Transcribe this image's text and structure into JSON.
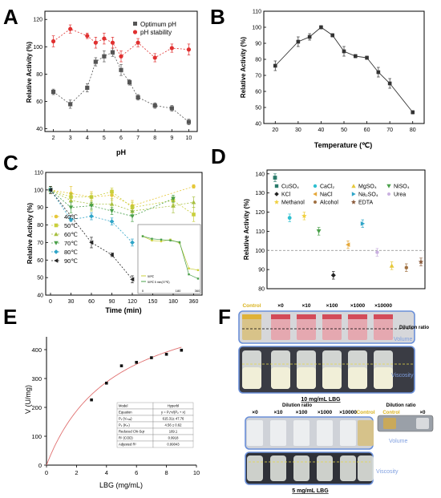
{
  "panels": {
    "A": {
      "letter": "A",
      "chart_type": "line",
      "x_label": "pH",
      "y_label": "Relative Activity (%)",
      "x_ticks": [
        2,
        3,
        4,
        5,
        6,
        7,
        8,
        9,
        10
      ],
      "y_ticks": [
        40,
        60,
        80,
        100,
        120
      ],
      "legend": [
        "Optimum pH",
        "pH stability"
      ],
      "legend_position": "top-right"
    },
    "B": {
      "letter": "B",
      "chart_type": "line",
      "x_label": "Temperature (℃)",
      "y_label": "Relative Activity (%)",
      "x_ticks": [
        20,
        30,
        40,
        50,
        60,
        70,
        80
      ],
      "y_ticks": [
        40,
        50,
        60,
        70,
        80,
        90,
        100,
        110
      ]
    },
    "C": {
      "letter": "C",
      "chart_type": "line",
      "x_label": "Time (min)",
      "y_label": "Relative Activity (%)",
      "x_tick_labels": [
        "0",
        "30",
        "60",
        "90",
        "120",
        "150",
        "180",
        "360"
      ],
      "y_ticks": [
        40,
        50,
        60,
        70,
        80,
        90,
        100,
        110
      ],
      "legend": [
        "40℃",
        "50℃",
        "60℃",
        "70℃",
        "80℃",
        "90℃"
      ],
      "legend_position": "left",
      "inset_legend": [
        "50℃",
        "50℃ 5 min(37℃)"
      ],
      "inset_x_tick_labels": [
        "0",
        "180",
        "360"
      ]
    },
    "D": {
      "letter": "D",
      "chart_type": "scatter",
      "y_label": "Relative Activity (%)",
      "y_ticks": [
        80,
        90,
        100,
        110,
        120,
        130,
        140
      ],
      "legend": [
        "CuSO₄",
        "CaCl₂",
        "MgSO₄",
        "NiSO₄",
        "KCl",
        "NaCl",
        "Na₂SO₄",
        "Urea",
        "Methanol",
        "Alcohol",
        "EDTA"
      ]
    },
    "E": {
      "letter": "E",
      "chart_type": "scatter",
      "x_label": "LBG (mg/mL)",
      "y_label": "V (U/mg)",
      "x_ticks": [
        0,
        2,
        4,
        6,
        8,
        10
      ],
      "y_ticks": [
        0,
        100,
        200,
        300,
        400
      ],
      "fit_table": [
        [
          "Model",
          "Hyperbl"
        ],
        [
          "Equation",
          "y = P₁*x/(P₂ + x)"
        ],
        [
          "P₁ (Vₘₐₓ)",
          "615.31± 47.76"
        ],
        [
          "P₂ (Kₘ)",
          "4.56 ± 0.62"
        ],
        [
          "Reduced Chi-Sqr",
          "169.1"
        ],
        [
          "R² (COD)",
          "0.9918"
        ],
        [
          "Adjusted R²",
          "0.99043"
        ]
      ]
    },
    "F": {
      "letter": "F",
      "top_labels": [
        "Control",
        "×0",
        "×10",
        "×100",
        "×1000",
        "×10000"
      ],
      "dilution_label": "Dilution ratio",
      "volume_label": "Volume",
      "viscosity_label": "Viscosity",
      "top_caption": "10 mg/mL  LBG",
      "bottom_labels": [
        "×0",
        "×10",
        "×100",
        "×1000",
        "×10000",
        "Control"
      ],
      "bottom_dilution_label": "Dilution ratio",
      "inset_dilution_label": "Dilution ratio",
      "inset_labels": [
        "Control",
        "×0"
      ],
      "bottom_volume_label": "Volume",
      "bottom_viscosity_label": "Viscosity",
      "bottom_caption": "5 mg/mL  LBG"
    }
  },
  "colors": {
    "black": "#2a2a2a",
    "red": "#e03030",
    "grey": "#555555",
    "c40": "#e6c83a",
    "c50": "#c9cf3b",
    "c60": "#a8c040",
    "c70": "#4aa04a",
    "c80": "#2fa5c8",
    "c90": "#222222",
    "fit": "#e07070",
    "photoBorder": "#6a8fd8",
    "photoBg": "#c8cfe0",
    "goldText": "#d9b21c",
    "blueText": "#7f9fe0"
  },
  "chart_data": [
    {
      "panel": "A",
      "type": "line",
      "x_label": "pH",
      "y_label": "Relative Activity (%)",
      "xlim": [
        1.5,
        10.5
      ],
      "ylim": [
        38,
        126
      ],
      "series": [
        {
          "name": "Optimum pH",
          "x": [
            2,
            3,
            4,
            4.5,
            5,
            5.5,
            6,
            6.5,
            7,
            8,
            9,
            10
          ],
          "y": [
            67,
            58,
            70,
            89,
            93,
            96,
            83,
            74,
            63,
            57,
            55,
            45
          ],
          "err": [
            2,
            3,
            3,
            3,
            4,
            3,
            4,
            2,
            2,
            2,
            2,
            2
          ]
        },
        {
          "name": "pH stability",
          "x": [
            2,
            3,
            4,
            4.5,
            5,
            5.5,
            6,
            7,
            8,
            9,
            10
          ],
          "y": [
            104,
            113,
            108,
            103,
            106,
            103,
            93,
            103,
            92,
            99,
            98
          ],
          "err": [
            4,
            3,
            2,
            4,
            4,
            4,
            4,
            3,
            3,
            3,
            4
          ]
        }
      ]
    },
    {
      "panel": "B",
      "type": "line",
      "x_label": "Temperature (℃)",
      "y_label": "Relative Activity (%)",
      "xlim": [
        15,
        85
      ],
      "ylim": [
        40,
        110
      ],
      "series": [
        {
          "x": [
            20,
            30,
            35,
            40,
            45,
            50,
            55,
            60,
            65,
            70,
            80
          ],
          "y": [
            76,
            91,
            94,
            100,
            95,
            85,
            82,
            81,
            72,
            65,
            47
          ],
          "err": [
            3,
            3,
            2,
            1,
            1,
            3,
            1,
            1,
            3,
            3,
            1
          ]
        }
      ]
    },
    {
      "panel": "C",
      "type": "line",
      "x_label": "Time (min)",
      "y_label": "Relative Activity (%)",
      "ylim": [
        40,
        110
      ],
      "series": [
        {
          "name": "40℃",
          "x": [
            "0",
            "30",
            "60",
            "90",
            "120",
            "360"
          ],
          "y": [
            100,
            98,
            96,
            97,
            91,
            102
          ],
          "err": [
            2,
            4,
            3,
            3,
            3,
            1
          ]
        },
        {
          "name": "50℃",
          "x": [
            "0",
            "30",
            "60",
            "90",
            "120",
            "180",
            "360"
          ],
          "y": [
            100,
            96,
            96,
            99,
            90,
            94,
            86
          ],
          "err": [
            1,
            2,
            2,
            2,
            3,
            2,
            4
          ]
        },
        {
          "name": "60℃",
          "x": [
            "0",
            "30",
            "60",
            "90",
            "120",
            "180",
            "360"
          ],
          "y": [
            100,
            94,
            92,
            92,
            88,
            91,
            93
          ],
          "err": [
            2,
            4,
            4,
            3,
            3,
            4,
            3
          ]
        },
        {
          "name": "70℃",
          "x": [
            "0",
            "30",
            "60",
            "90",
            "120",
            "180"
          ],
          "y": [
            100,
            90,
            91,
            88,
            85,
            95
          ],
          "err": [
            2,
            3,
            2,
            2,
            3,
            2
          ]
        },
        {
          "name": "80℃",
          "x": [
            "0",
            "30",
            "60",
            "90",
            "120"
          ],
          "y": [
            100,
            83,
            85,
            82,
            70
          ],
          "err": [
            1,
            1,
            2,
            2,
            2
          ]
        },
        {
          "name": "90℃",
          "x": [
            "0",
            "60",
            "90",
            "120"
          ],
          "y": [
            100,
            70,
            63,
            49
          ],
          "err": [
            2,
            3,
            1,
            2
          ]
        }
      ],
      "inset": {
        "series": [
          {
            "name": "50℃",
            "x": [
              "0",
              "30",
              "60",
              "90",
              "120",
              "180",
              "360"
            ],
            "y": [
              100,
              95,
              94,
              96,
              92,
              62,
              60
            ]
          },
          {
            "name": "50℃ 5 min(37℃)",
            "x": [
              "0",
              "30",
              "60",
              "90",
              "120",
              "180",
              "360"
            ],
            "y": [
              100,
              97,
              96,
              95,
              93,
              55,
              50
            ]
          }
        ]
      }
    },
    {
      "panel": "D",
      "type": "scatter",
      "y_label": "Relative Activity (%)",
      "ylim": [
        80,
        142
      ],
      "reference_line": 100,
      "points": [
        {
          "name": "CuSO₄",
          "y": 138,
          "err": 2
        },
        {
          "name": "CaCl₂",
          "y": 117,
          "err": 2
        },
        {
          "name": "Methanol",
          "y": 118,
          "err": 2
        },
        {
          "name": "NiSO₄",
          "y": 110,
          "err": 2
        },
        {
          "name": "KCl",
          "y": 87,
          "err": 2
        },
        {
          "name": "NaCl",
          "y": 103,
          "err": 2
        },
        {
          "name": "Na₂SO₄",
          "y": 114,
          "err": 2
        },
        {
          "name": "Urea",
          "y": 99,
          "err": 2
        },
        {
          "name": "MgSO₄",
          "y": 92,
          "err": 2
        },
        {
          "name": "Alcohol",
          "y": 91,
          "err": 2
        },
        {
          "name": "EDTA",
          "y": 94,
          "err": 2
        }
      ]
    },
    {
      "panel": "E",
      "type": "scatter",
      "x_label": "LBG (mg/mL)",
      "y_label": "V (U/mg)",
      "xlim": [
        0,
        10
      ],
      "ylim": [
        0,
        450
      ],
      "points": {
        "x": [
          3,
          4,
          5,
          6,
          7,
          8,
          9
        ],
        "y": [
          226,
          284,
          344,
          356,
          372,
          384,
          398
        ]
      },
      "fit": {
        "Vmax": 615.31,
        "Km": 4.56
      }
    }
  ]
}
